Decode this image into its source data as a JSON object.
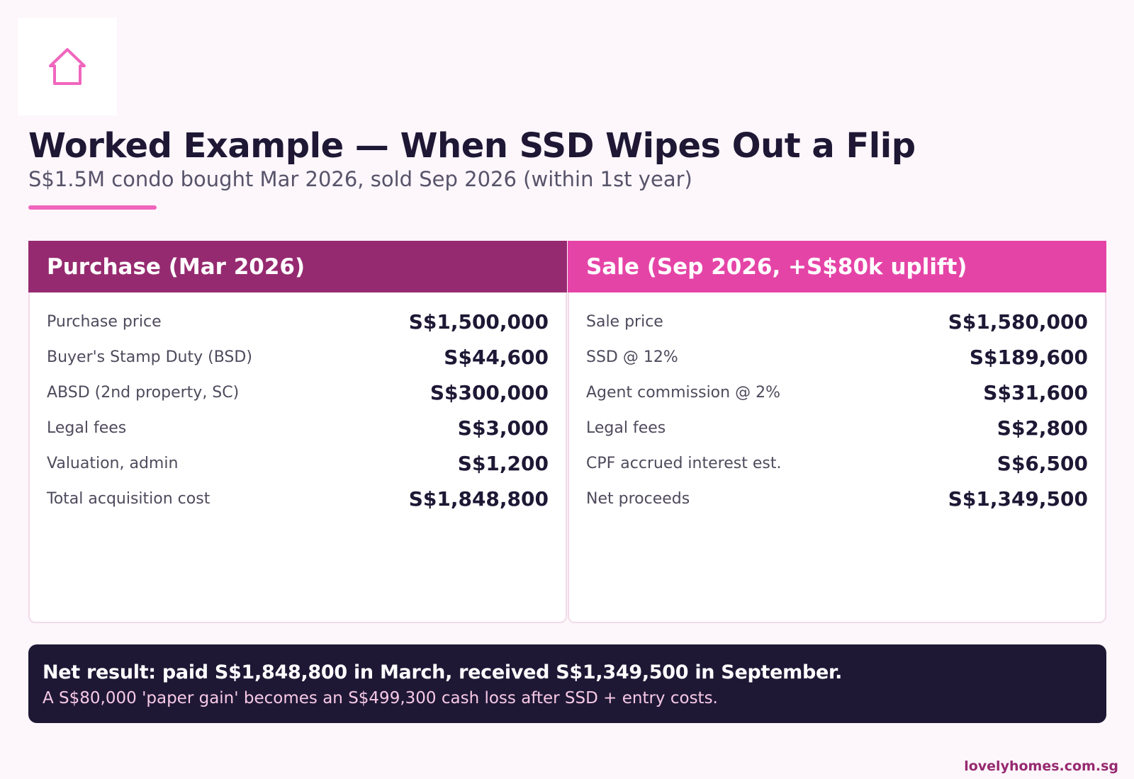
{
  "brand": {
    "logo_icon": "house-icon",
    "accent_color": "#f066bd",
    "footer_url": "lovelyhomes.com.sg"
  },
  "header": {
    "title": "Worked Example — When SSD Wipes Out a Flip",
    "subtitle": "S$1.5M condo bought Mar 2026, sold Sep 2026 (within 1st year)"
  },
  "purchase": {
    "heading": "Purchase (Mar 2026)",
    "header_color": "#962a70",
    "rows": [
      {
        "label": "Purchase price",
        "value": "S$1,500,000"
      },
      {
        "label": "Buyer's Stamp Duty (BSD)",
        "value": "S$44,600"
      },
      {
        "label": "ABSD (2nd property, SC)",
        "value": "S$300,000"
      },
      {
        "label": "Legal fees",
        "value": "S$3,000"
      },
      {
        "label": "Valuation, admin",
        "value": "S$1,200"
      },
      {
        "label": "Total acquisition cost",
        "value": "S$1,848,800"
      }
    ]
  },
  "sale": {
    "heading": "Sale (Sep 2026, +S$80k uplift)",
    "header_color": "#e544a7",
    "rows": [
      {
        "label": "Sale price",
        "value": "S$1,580,000"
      },
      {
        "label": "SSD @ 12%",
        "value": "S$189,600"
      },
      {
        "label": "Agent commission @ 2%",
        "value": "S$31,600"
      },
      {
        "label": "Legal fees",
        "value": "S$2,800"
      },
      {
        "label": "CPF accrued interest est.",
        "value": "S$6,500"
      },
      {
        "label": "Net proceeds",
        "value": "S$1,349,500"
      }
    ]
  },
  "result": {
    "headline": "Net result: paid S$1,848,800 in March, received S$1,349,500 in September.",
    "detail": "A S$80,000 'paper gain' becomes an S$499,300 cash loss after SSD + entry costs."
  }
}
